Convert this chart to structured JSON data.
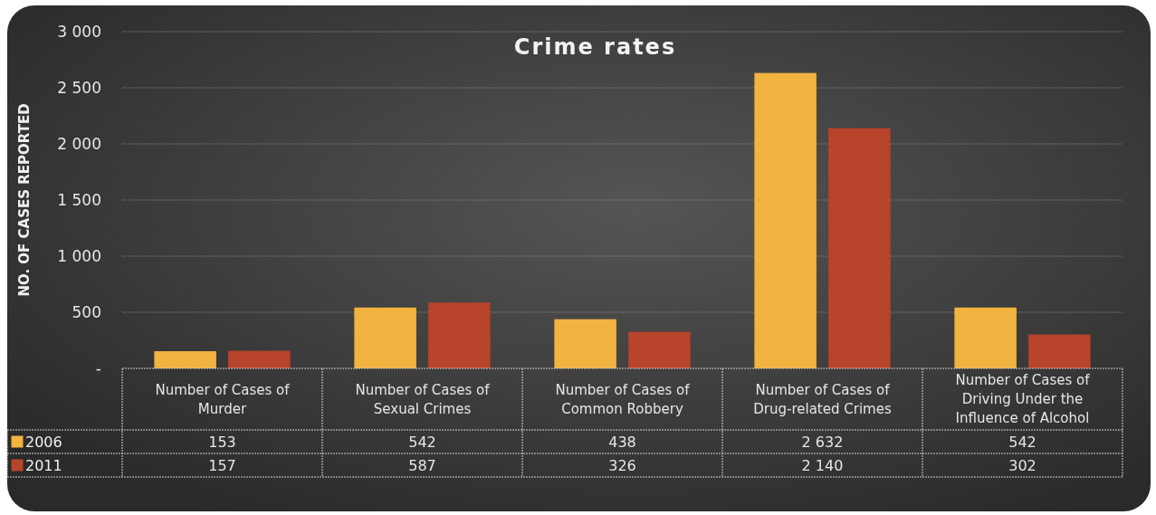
{
  "chart_data": {
    "type": "bar",
    "title": "Crime rates",
    "ylabel": "NO. OF CASES REPORTED",
    "categories": [
      "Number of Cases of Murder",
      "Number of Cases of Sexual Crimes",
      "Number of Cases of Common Robbery",
      "Number of Cases of Drug-related Crimes",
      "Number of Cases of Driving Under the Influence of Alcohol"
    ],
    "series": [
      {
        "name": "2006",
        "color": "#f2b340",
        "values": [
          153,
          542,
          438,
          2632,
          542
        ],
        "value_labels": [
          "153",
          "542",
          "438",
          "2 632",
          "542"
        ]
      },
      {
        "name": "2011",
        "color": "#b8442b",
        "values": [
          157,
          587,
          326,
          2140,
          302
        ],
        "value_labels": [
          "157",
          "587",
          "326",
          "2 140",
          "302"
        ]
      }
    ],
    "ylim": [
      0,
      3000
    ],
    "yticks": [
      {
        "value": 0,
        "label": "-"
      },
      {
        "value": 500,
        "label": "500"
      },
      {
        "value": 1000,
        "label": "1 000"
      },
      {
        "value": 1500,
        "label": "1 500"
      },
      {
        "value": 2000,
        "label": "2 000"
      },
      {
        "value": 2500,
        "label": "2 500"
      },
      {
        "value": 3000,
        "label": "3 000"
      }
    ],
    "grid": "y",
    "legend": "bottom"
  }
}
